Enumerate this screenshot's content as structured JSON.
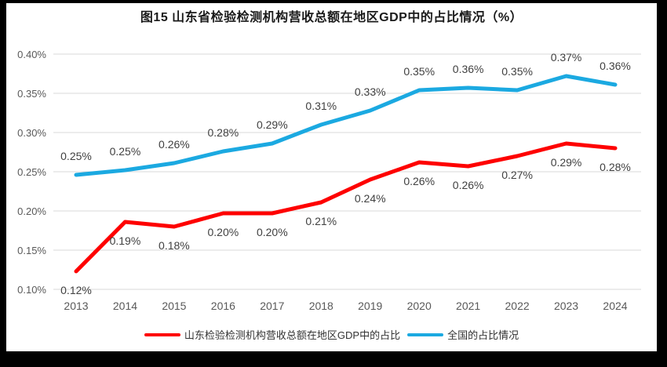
{
  "chart_data": {
    "type": "line",
    "title": "图15  山东省检验检测机构营收总额在地区GDP中的占比情况（%）",
    "categories": [
      "2013",
      "2014",
      "2015",
      "2016",
      "2017",
      "2018",
      "2019",
      "2020",
      "2021",
      "2022",
      "2023",
      "2024"
    ],
    "y_axis": {
      "min": 0.1,
      "max": 0.4,
      "ticks": [
        0.4,
        0.35,
        0.3,
        0.25,
        0.2,
        0.15,
        0.1
      ],
      "tick_labels": [
        "0.40%",
        "0.35%",
        "0.30%",
        "0.25%",
        "0.20%",
        "0.15%",
        "0.10%"
      ],
      "grid": true,
      "grid_color": "#d9d9d9"
    },
    "legend_position": "bottom",
    "series": [
      {
        "name": "山东检验检测机构营收总额在地区GDP中的占比",
        "color": "#fe0000",
        "values": [
          0.123,
          0.186,
          0.18,
          0.197,
          0.197,
          0.211,
          0.24,
          0.262,
          0.257,
          0.27,
          0.286,
          0.28
        ],
        "point_labels": [
          "0.12%",
          "0.19%",
          "0.18%",
          "0.20%",
          "0.20%",
          "0.21%",
          "0.24%",
          "0.26%",
          "0.26%",
          "0.27%",
          "0.29%",
          "0.28%"
        ],
        "label_position": "below"
      },
      {
        "name": "全国的占比情况",
        "color": "#1ba9e1",
        "values": [
          0.246,
          0.252,
          0.261,
          0.276,
          0.286,
          0.31,
          0.328,
          0.354,
          0.357,
          0.354,
          0.372,
          0.361
        ],
        "point_labels": [
          "0.25%",
          "0.25%",
          "0.26%",
          "0.28%",
          "0.29%",
          "0.31%",
          "0.33%",
          "0.35%",
          "0.36%",
          "0.35%",
          "0.37%",
          "0.36%"
        ],
        "label_position": "above"
      }
    ]
  }
}
